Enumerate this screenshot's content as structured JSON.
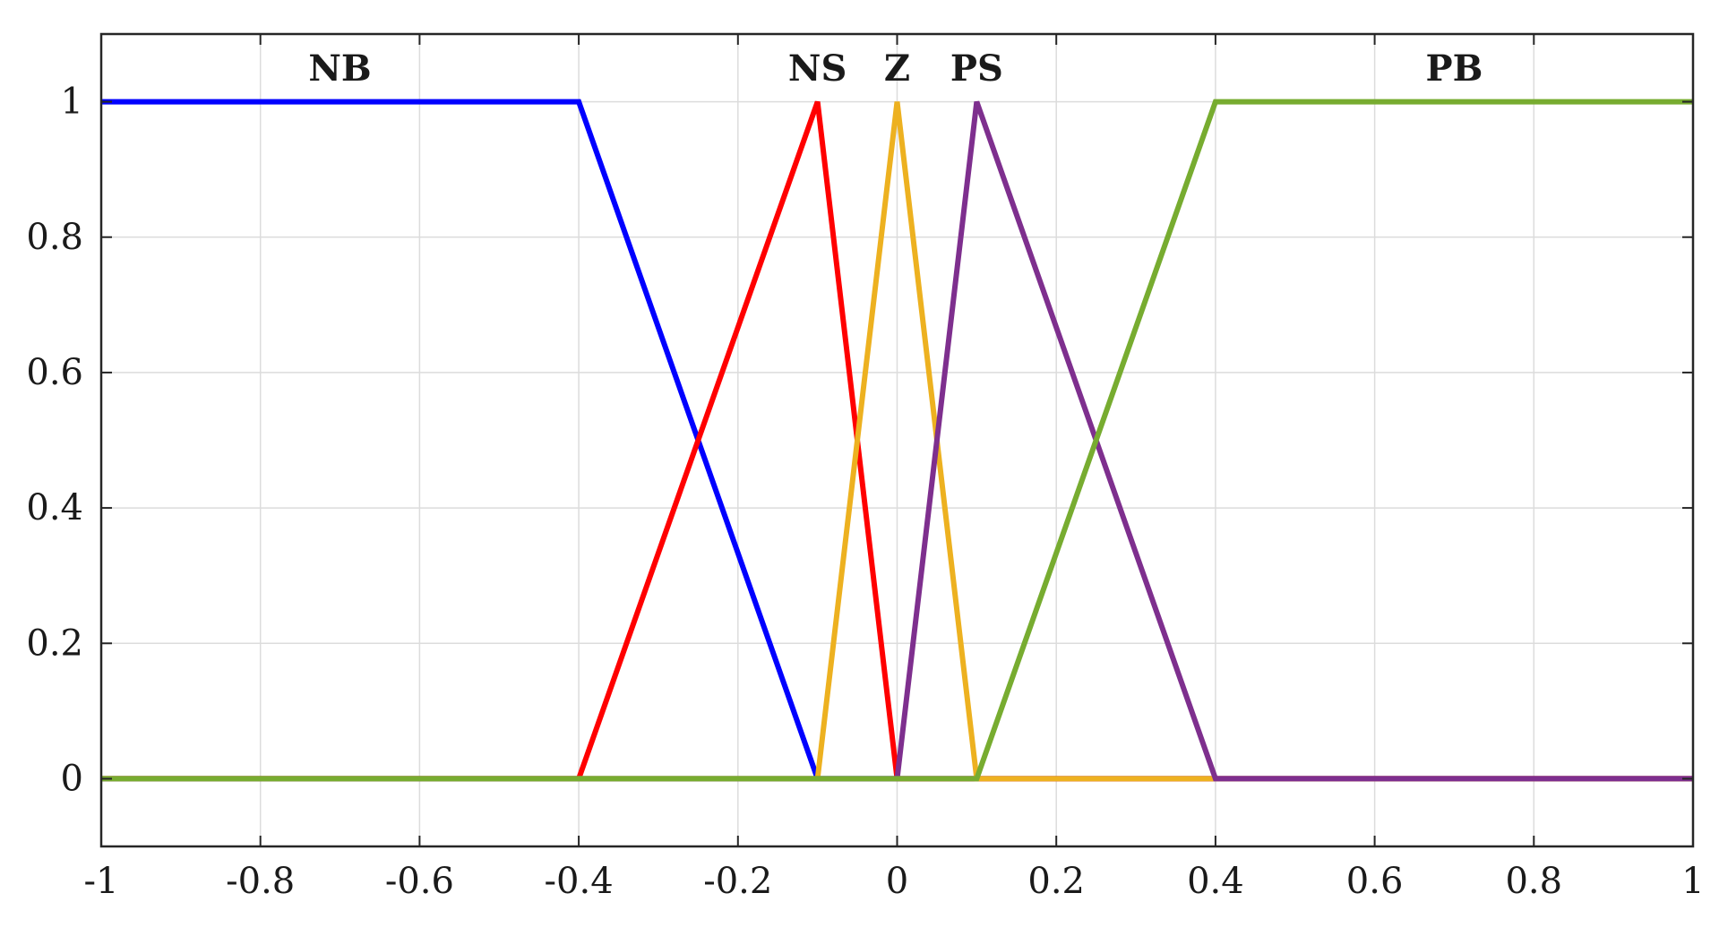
{
  "chart_data": {
    "type": "line",
    "title": "",
    "xlabel": "",
    "ylabel": "",
    "xlim": [
      -1,
      1
    ],
    "ylim": [
      -0.1,
      1.1
    ],
    "grid": true,
    "x_ticks": [
      -1,
      -0.8,
      -0.6,
      -0.4,
      -0.2,
      0,
      0.2,
      0.4,
      0.6,
      0.8,
      1
    ],
    "x_tick_labels": [
      "-1",
      "-0.8",
      "-0.6",
      "-0.4",
      "-0.2",
      "0",
      "0.2",
      "0.4",
      "0.6",
      "0.8",
      "1"
    ],
    "y_ticks": [
      0,
      0.2,
      0.4,
      0.6,
      0.8,
      1
    ],
    "y_tick_labels": [
      "0",
      "0.2",
      "0.4",
      "0.6",
      "0.8",
      "1"
    ],
    "series": [
      {
        "name": "NB",
        "color": "#0000ff",
        "label_x": -0.7,
        "x": [
          -1,
          -0.4,
          -0.1,
          1
        ],
        "y": [
          1,
          1,
          0,
          0
        ]
      },
      {
        "name": "NS",
        "color": "#ff0000",
        "label_x": -0.1,
        "x": [
          -1,
          -0.4,
          -0.1,
          0,
          1
        ],
        "y": [
          0,
          0,
          1,
          0,
          0
        ]
      },
      {
        "name": "Z",
        "color": "#edb120",
        "label_x": 0,
        "x": [
          -1,
          -0.1,
          0,
          0.1,
          1
        ],
        "y": [
          0,
          0,
          1,
          0,
          0
        ]
      },
      {
        "name": "PS",
        "color": "#7e2f8e",
        "label_x": 0.1,
        "x": [
          -1,
          0,
          0.1,
          0.4,
          1
        ],
        "y": [
          0,
          0,
          1,
          0,
          0
        ]
      },
      {
        "name": "PB",
        "color": "#77ac30",
        "label_x": 0.7,
        "x": [
          -1,
          0.1,
          0.4,
          1
        ],
        "y": [
          0,
          0,
          1,
          1
        ]
      }
    ]
  }
}
